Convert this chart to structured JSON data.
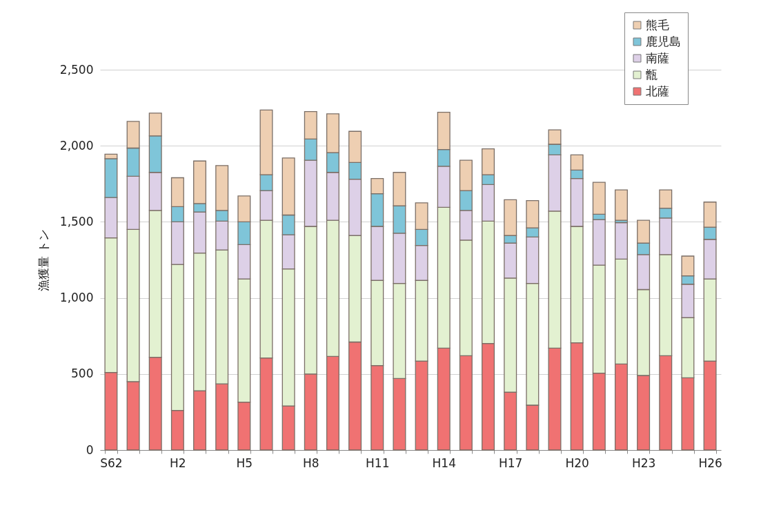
{
  "chart_data": {
    "type": "bar",
    "stacked": true,
    "ylabel": "漁獲量 トン",
    "categories": [
      "S62",
      null,
      null,
      "H2",
      null,
      null,
      "H5",
      null,
      null,
      "H8",
      null,
      null,
      "H11",
      null,
      null,
      "H14",
      null,
      null,
      "H17",
      null,
      null,
      "H20",
      null,
      null,
      "H23",
      null,
      null,
      "H26"
    ],
    "series": [
      {
        "name": "北薩",
        "color": "#f07272",
        "values": [
          510,
          450,
          610,
          260,
          390,
          435,
          315,
          605,
          290,
          500,
          615,
          710,
          555,
          470,
          585,
          670,
          620,
          700,
          380,
          295,
          670,
          705,
          505,
          565,
          490,
          620,
          475,
          585
        ]
      },
      {
        "name": "甑",
        "color": "#e3f1d1",
        "values": [
          885,
          1000,
          965,
          960,
          905,
          880,
          810,
          905,
          900,
          970,
          895,
          700,
          560,
          625,
          530,
          925,
          760,
          805,
          750,
          800,
          900,
          765,
          710,
          690,
          565,
          665,
          395,
          540
        ]
      },
      {
        "name": "南薩",
        "color": "#ddd0e7",
        "values": [
          265,
          350,
          250,
          280,
          270,
          190,
          225,
          195,
          225,
          435,
          315,
          370,
          355,
          330,
          230,
          270,
          195,
          240,
          230,
          305,
          370,
          315,
          300,
          240,
          230,
          240,
          220,
          260
        ]
      },
      {
        "name": "鹿児島",
        "color": "#7fc5d9",
        "values": [
          255,
          185,
          240,
          100,
          55,
          70,
          150,
          105,
          130,
          140,
          130,
          110,
          215,
          180,
          105,
          110,
          130,
          65,
          50,
          60,
          70,
          55,
          35,
          15,
          75,
          65,
          55,
          80
        ]
      },
      {
        "name": "熊毛",
        "color": "#eecfb2",
        "values": [
          30,
          175,
          150,
          190,
          280,
          295,
          170,
          425,
          375,
          180,
          255,
          205,
          100,
          220,
          175,
          245,
          200,
          170,
          235,
          180,
          95,
          100,
          210,
          200,
          150,
          120,
          130,
          165
        ]
      }
    ],
    "ylim": [
      0,
      2500
    ],
    "yticks": [
      0,
      {
        "value": 500,
        "label": "500"
      },
      {
        "value": 1000,
        "label": "1,000"
      },
      {
        "value": 1500,
        "label": "1,500"
      },
      {
        "value": 2000,
        "label": "2,000"
      },
      {
        "value": 2500,
        "label": "2,500"
      }
    ],
    "grid": "y",
    "legend": "top right"
  }
}
